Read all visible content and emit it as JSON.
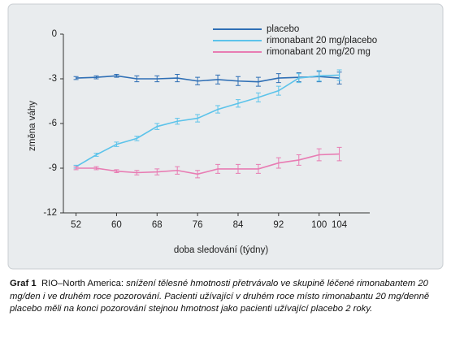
{
  "chart_data": {
    "type": "line",
    "y_label": "změna váhy",
    "x_label": "doba sledování (týdny)",
    "x": [
      52,
      56,
      60,
      64,
      68,
      72,
      76,
      80,
      84,
      88,
      92,
      96,
      100,
      104
    ],
    "series": [
      {
        "name": "placebo",
        "color": "#2f6fb5",
        "values": [
          -2.95,
          -2.9,
          -2.8,
          -3.0,
          -3.0,
          -2.95,
          -3.15,
          -3.05,
          -3.15,
          -3.2,
          -2.95,
          -2.9,
          -2.85,
          -2.95
        ],
        "errors": [
          0.1,
          0.1,
          0.1,
          0.2,
          0.2,
          0.25,
          0.25,
          0.3,
          0.3,
          0.3,
          0.3,
          0.3,
          0.35,
          0.4
        ]
      },
      {
        "name": "rimonabant 20 mg/placebo",
        "color": "#5cc3ea",
        "values": [
          -8.9,
          -8.1,
          -7.4,
          -7.0,
          -6.2,
          -5.85,
          -5.65,
          -5.05,
          -4.65,
          -4.25,
          -3.8,
          -2.95,
          -2.8,
          -2.75
        ],
        "errors": [
          0.1,
          0.1,
          0.15,
          0.15,
          0.2,
          0.2,
          0.25,
          0.25,
          0.25,
          0.3,
          0.3,
          0.3,
          0.35,
          0.35
        ]
      },
      {
        "name": "rimonabant 20 mg/20 mg",
        "color": "#e87cb3",
        "values": [
          -9.0,
          -9.0,
          -9.2,
          -9.3,
          -9.25,
          -9.15,
          -9.4,
          -9.05,
          -9.05,
          -9.05,
          -8.65,
          -8.45,
          -8.1,
          -8.05
        ],
        "errors": [
          0.1,
          0.1,
          0.1,
          0.15,
          0.2,
          0.25,
          0.25,
          0.3,
          0.3,
          0.3,
          0.35,
          0.35,
          0.4,
          0.45
        ]
      }
    ],
    "xlim": [
      49.5,
      110
    ],
    "xticks": [
      52,
      60,
      68,
      76,
      84,
      92,
      100,
      104
    ],
    "ylim": [
      -12,
      0
    ],
    "yticks": [
      0,
      -3,
      -6,
      -9,
      -12
    ],
    "legend": "top"
  },
  "caption": {
    "label": "Graf 1",
    "lead": "RIO–North America:",
    "text": "snížení tělesné hmotnosti přetrvávalo ve skupině léčené rimonabantem 20 mg/den i ve druhém roce pozorování. Pacienti užívající v druhém roce místo rimonabantu 20 mg/denně placebo měli na konci pozorování stejnou hmotnost jako pacienti užívající placebo 2 roky."
  }
}
